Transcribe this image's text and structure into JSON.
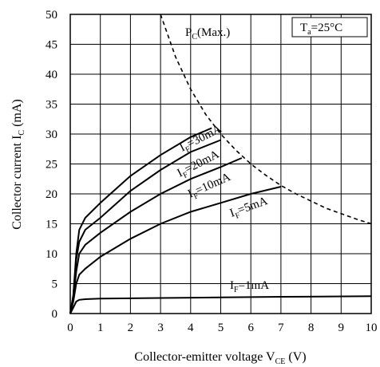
{
  "chart_data": {
    "type": "line",
    "xlabel_main": "Collector-emitter voltage V",
    "xlabel_sub": "CE",
    "xlabel_unit": " (V)",
    "ylabel_main": "Collector current I",
    "ylabel_sub": "C",
    "ylabel_unit": " (mA)",
    "xlim": [
      0,
      10
    ],
    "ylim": [
      0,
      50
    ],
    "x_ticks": [
      "0",
      "1",
      "2",
      "3",
      "4",
      "5",
      "6",
      "7",
      "8",
      "9",
      "10"
    ],
    "y_ticks": [
      "0",
      "5",
      "10",
      "15",
      "20",
      "25",
      "30",
      "35",
      "40",
      "45",
      "50"
    ],
    "grid": true,
    "condition": {
      "main": "T",
      "sub": "a",
      "rest": "=25°C"
    },
    "power_limit": {
      "label_main": "P",
      "label_sub": "C",
      "label_rest": "(Max.)",
      "x": [
        3,
        3.5,
        4,
        4.5,
        5,
        5.5,
        6,
        6.5,
        7,
        7.5,
        8,
        8.5,
        9,
        9.5,
        10
      ],
      "y": [
        50,
        42.9,
        37.5,
        33.3,
        30,
        27.3,
        25,
        23.1,
        21.4,
        20,
        18.8,
        17.6,
        16.7,
        15.8,
        15
      ]
    },
    "series": [
      {
        "name_main": "I",
        "name_sub": "F",
        "name_rest": "=30mA",
        "x": [
          0,
          0.1,
          0.2,
          0.3,
          0.5,
          1,
          2,
          3,
          4,
          4.7
        ],
        "y": [
          0,
          3,
          10,
          14,
          16,
          18.5,
          23,
          26.5,
          29.5,
          31
        ]
      },
      {
        "name_main": "I",
        "name_sub": "F",
        "name_rest": "=20mA",
        "x": [
          0,
          0.1,
          0.2,
          0.3,
          0.5,
          1,
          2,
          3,
          4,
          5
        ],
        "y": [
          0,
          3,
          9,
          12,
          14,
          16,
          20.5,
          24,
          27,
          29
        ]
      },
      {
        "name_main": "I",
        "name_sub": "F",
        "name_rest": "=10mA",
        "x": [
          0,
          0.1,
          0.2,
          0.3,
          0.5,
          1,
          2,
          3,
          4,
          5,
          5.7
        ],
        "y": [
          0,
          2.5,
          7,
          10,
          11.5,
          13.5,
          17,
          20,
          22.5,
          24.5,
          26
        ]
      },
      {
        "name_main": "I",
        "name_sub": "F",
        "name_rest": "=5mA",
        "x": [
          0,
          0.1,
          0.2,
          0.3,
          0.5,
          1,
          2,
          3,
          4,
          5,
          6,
          7
        ],
        "y": [
          0,
          2,
          5,
          6.5,
          7.5,
          9.5,
          12.5,
          15,
          17,
          18.5,
          20,
          21.2
        ]
      },
      {
        "name_main": "I",
        "name_sub": "F",
        "name_rest": "=1mA",
        "x": [
          0,
          0.1,
          0.2,
          0.3,
          0.5,
          1,
          3,
          5,
          7,
          10
        ],
        "y": [
          0,
          1,
          2,
          2.3,
          2.4,
          2.5,
          2.6,
          2.7,
          2.8,
          2.9
        ]
      }
    ],
    "label_positions_data": {}
  }
}
